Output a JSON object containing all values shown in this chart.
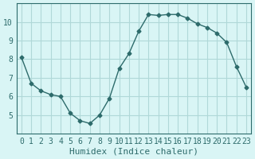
{
  "x": [
    0,
    1,
    2,
    3,
    4,
    5,
    6,
    7,
    8,
    9,
    10,
    11,
    12,
    13,
    14,
    15,
    16,
    17,
    18,
    19,
    20,
    21,
    22,
    23
  ],
  "y": [
    8.1,
    6.7,
    6.3,
    6.1,
    6.0,
    5.1,
    4.7,
    4.55,
    5.0,
    5.9,
    7.5,
    8.3,
    9.5,
    10.4,
    10.35,
    10.4,
    10.4,
    10.2,
    9.9,
    9.7,
    9.4,
    8.9,
    7.6,
    6.5
  ],
  "xlabel": "Humidex (Indice chaleur)",
  "ylim": [
    4,
    11
  ],
  "xlim": [
    -0.5,
    23.5
  ],
  "yticks": [
    5,
    6,
    7,
    8,
    9,
    10
  ],
  "xticks": [
    0,
    1,
    2,
    3,
    4,
    5,
    6,
    7,
    8,
    9,
    10,
    11,
    12,
    13,
    14,
    15,
    16,
    17,
    18,
    19,
    20,
    21,
    22,
    23
  ],
  "line_color": "#2d6b6b",
  "marker": "D",
  "marker_size": 2.5,
  "bg_color": "#d9f5f5",
  "grid_color": "#b0d8d8",
  "axes_color": "#2d6b6b",
  "tick_label_color": "#2d6b6b",
  "xlabel_color": "#2d6b6b",
  "xlabel_fontsize": 8,
  "tick_fontsize": 7
}
